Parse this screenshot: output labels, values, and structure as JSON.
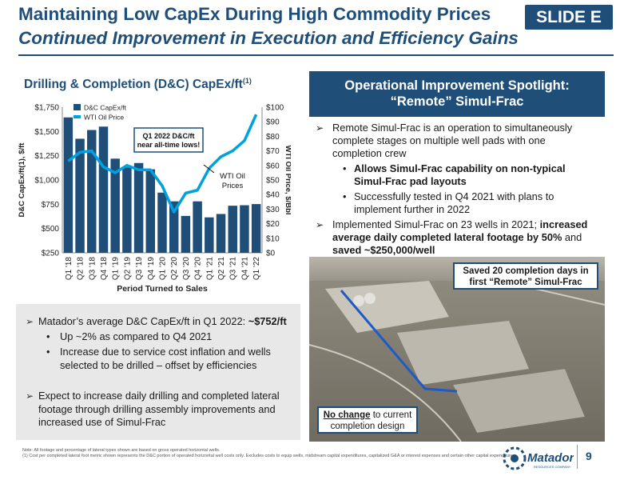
{
  "header": {
    "title": "Maintaining Low CapEx During High Commodity Prices",
    "subtitle": "Continued Improvement in Execution and Efficiency Gains",
    "badge": "SLIDE E"
  },
  "chart_section": {
    "heading": "Drilling & Completion (D&C) CapEx/ft",
    "heading_sup": "(1)",
    "callout": "Q1 2022 D&C/ft near all-time lows!",
    "line_annotation": "WTI Oil Prices",
    "y_left_label": "D&C CapEx/ft(1), $/ft",
    "y_right_label": "WTI Oil Price, $/Bbl",
    "x_label": "Period Turned to Sales"
  },
  "chart_data": {
    "type": "bar",
    "categories": [
      "Q1 '18",
      "Q2 '18",
      "Q3 '18",
      "Q4 '18",
      "Q1 '19",
      "Q2 '19",
      "Q3 '19",
      "Q4 '19",
      "Q1 '20",
      "Q2 '20",
      "Q3 '20",
      "Q4 '20",
      "Q1 '21",
      "Q2 '21",
      "Q3 '21",
      "Q4 '21",
      "Q1 '22"
    ],
    "series": [
      {
        "name": "D&C CapEx/ft",
        "type": "bar",
        "axis": "left",
        "color": "#1f4e79",
        "values": [
          1645,
          1425,
          1515,
          1550,
          1220,
          1130,
          1175,
          1110,
          870,
          780,
          630,
          780,
          615,
          650,
          735,
          740,
          752
        ]
      },
      {
        "name": "WTI Oil Price",
        "type": "line",
        "axis": "right",
        "color": "#00a1e0",
        "values": [
          63,
          69,
          70,
          59,
          55,
          60,
          57,
          57,
          46,
          28,
          41,
          43,
          58,
          66,
          70,
          77,
          95
        ]
      }
    ],
    "y_left": {
      "min": 250,
      "max": 1750,
      "ticks": [
        "$250",
        "$500",
        "$750",
        "$1,000",
        "$1,250",
        "$1,500",
        "$1,750"
      ]
    },
    "y_right": {
      "min": 0,
      "max": 100,
      "ticks": [
        "$0",
        "$10",
        "$20",
        "$30",
        "$40",
        "$50",
        "$60",
        "$70",
        "$80",
        "$90",
        "$100"
      ]
    },
    "legend": [
      "D&C CapEx/ft",
      "WTI Oil Price"
    ],
    "legend_position": "top-left"
  },
  "bottom_panel": {
    "item1_prefix": "Matador’s average D&C CapEx/ft in Q1 2022: ",
    "item1_bold": "~$752/ft",
    "item1_sub1": "Up ~2% as compared to Q4 2021",
    "item1_sub2": "Increase due to service cost inflation and wells selected to be drilled – offset by efficiencies",
    "item2": "Expect to increase daily drilling and completed lateral footage through drilling assembly improvements and increased use of Simul-Frac"
  },
  "spotlight": {
    "heading_line1": "Operational Improvement Spotlight:",
    "heading_line2": "“Remote” Simul-Frac",
    "bullet1": "Remote Simul-Frac is an operation to simultaneously complete stages on multiple well pads with one completion crew",
    "sub1": "Allows Simul-Frac capability on non-typical Simul-Frac pad layouts",
    "sub2": "Successfully tested in Q4 2021 with plans to implement further in 2022",
    "bullet2_prefix": "Implemented Simul-Frac on 23 wells in 2021; ",
    "bullet2_bold1": "increased average daily completed lateral footage by 50%",
    "bullet2_mid": " and ",
    "bullet2_bold2": "saved ~$250,000/well"
  },
  "photo": {
    "label_top": "Saved 20 completion days in first “Remote” Simul-Frac",
    "label_bottom_u": "No change",
    "label_bottom_rest": " to current completion design",
    "line_color": "#1e5bc6"
  },
  "footer": {
    "note": "Note: All footage and percentage of lateral types shown are based on gross operated horizontal wells.",
    "note1": "(1)  Cost per completed lateral foot metric shown represents the D&C portion of operated horizontal well costs only. Excludes costs to equip wells, midstream capital expenditures, capitalized G&A or interest expenses and certain other capital expenditures.",
    "logo_text": "Matador",
    "logo_sub": "RESOURCES COMPANY",
    "page": "9"
  }
}
